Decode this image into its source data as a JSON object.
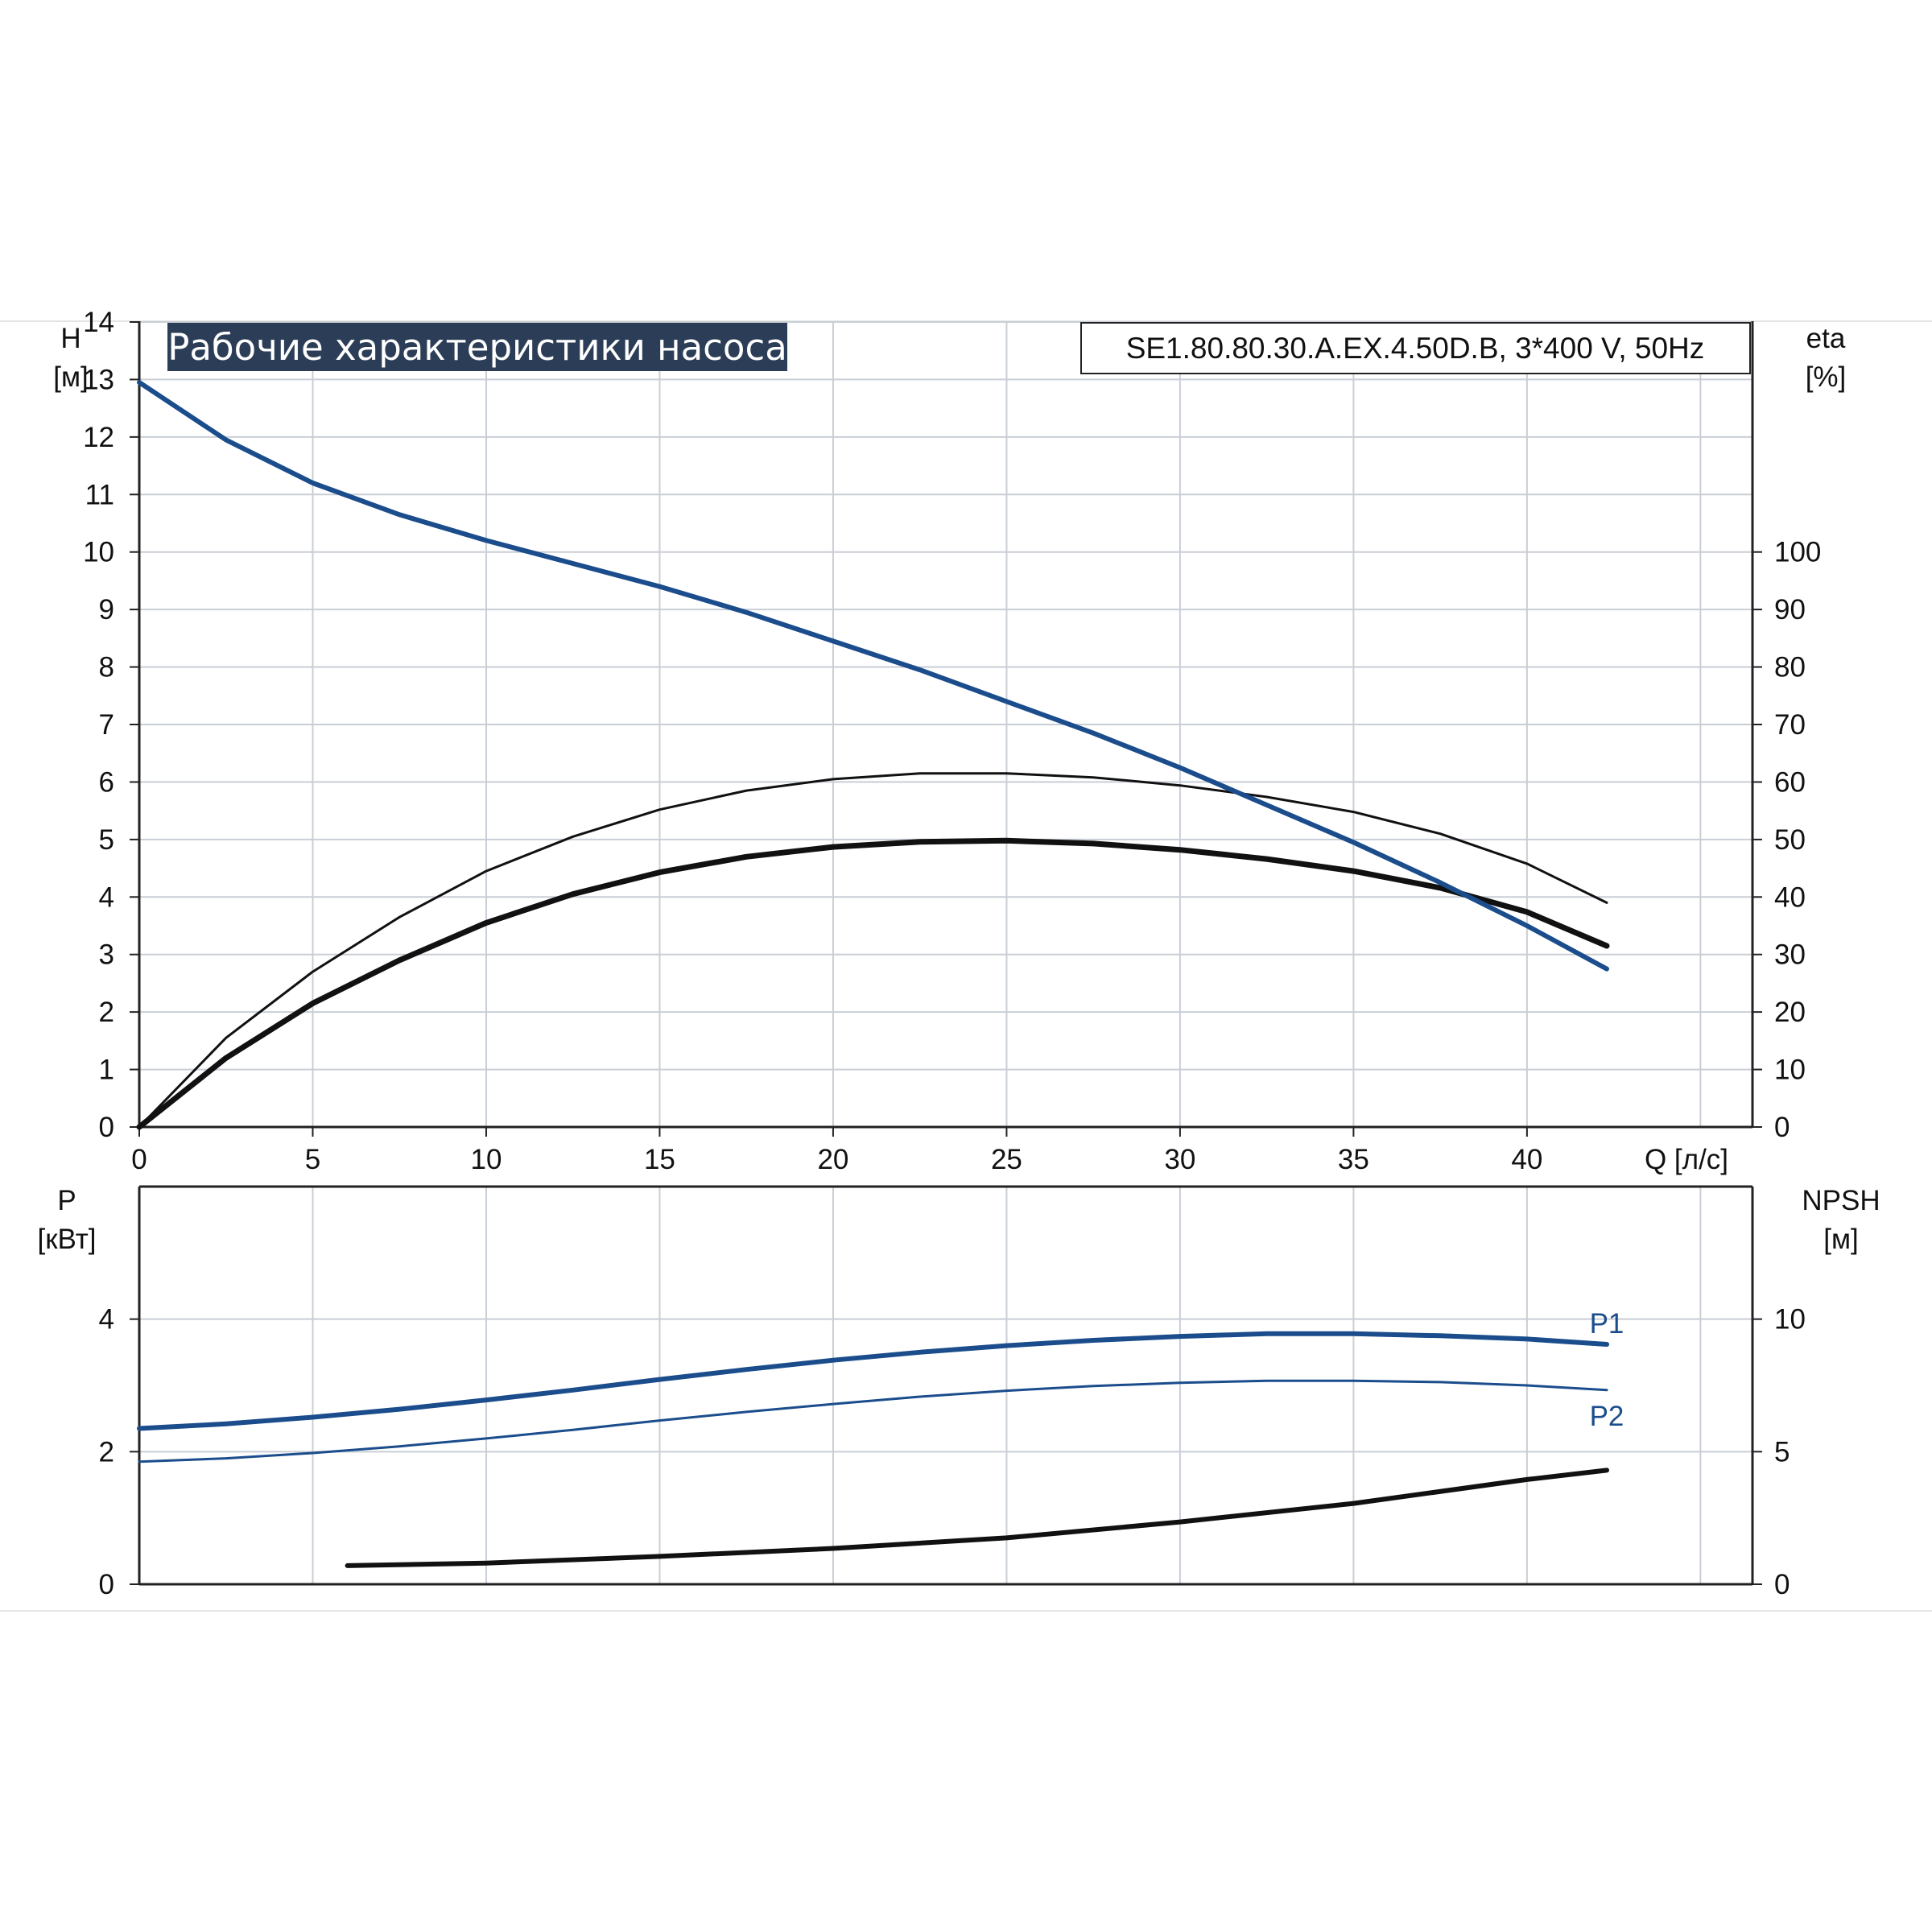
{
  "chart_data": [
    {
      "type": "line",
      "title": "Рабочие характеристики насоса",
      "subtitle": "SE1.80.80.30.A.EX.4.50D.B, 3*400 V, 50Hz",
      "xlabel": "Q [л/с]",
      "ylabel": [
        "H",
        "[м]"
      ],
      "y2label": [
        "eta",
        "[%]"
      ],
      "xlim": [
        0,
        46.5
      ],
      "xticks": [
        0,
        5,
        10,
        15,
        20,
        25,
        30,
        35,
        40
      ],
      "ylim": [
        0,
        14
      ],
      "yticks": [
        0,
        1,
        2,
        3,
        4,
        5,
        6,
        7,
        8,
        9,
        10,
        11,
        12,
        13,
        14
      ],
      "y2lim": [
        0,
        140
      ],
      "y2ticks": [
        0,
        10,
        20,
        30,
        40,
        50,
        60,
        70,
        80,
        90,
        100
      ],
      "grid": true,
      "series": [
        {
          "name": "",
          "axis": "left",
          "color": "#1b4d8c",
          "x": [
            0,
            2.5,
            5,
            7.5,
            10,
            12.5,
            15,
            17.5,
            20,
            22.5,
            25,
            27.5,
            30,
            32.5,
            35,
            37.5,
            40,
            42.3
          ],
          "y": [
            12.95,
            11.95,
            11.2,
            10.65,
            10.2,
            9.8,
            9.4,
            8.95,
            8.45,
            7.95,
            7.4,
            6.85,
            6.25,
            5.6,
            4.95,
            4.25,
            3.5,
            2.75
          ]
        },
        {
          "name": "",
          "axis": "right",
          "color": "#111111",
          "x": [
            0,
            2.5,
            5,
            7.5,
            10,
            12.5,
            15,
            17.5,
            20,
            22.5,
            25,
            27.5,
            30,
            32.5,
            35,
            37.5,
            40,
            42.3
          ],
          "y": [
            0,
            12,
            21.5,
            29,
            35.5,
            40.5,
            44.3,
            47,
            48.7,
            49.6,
            49.8,
            49.3,
            48.2,
            46.6,
            44.5,
            41.6,
            37.4,
            31.5
          ]
        },
        {
          "name": "",
          "axis": "right",
          "color": "#111111",
          "x": [
            0,
            2.5,
            5,
            7.5,
            10,
            12.5,
            15,
            17.5,
            20,
            22.5,
            25,
            27.5,
            30,
            32.5,
            35,
            37.5,
            40,
            42.3
          ],
          "y": [
            0,
            15.5,
            27,
            36.5,
            44.5,
            50.5,
            55.2,
            58.5,
            60.5,
            61.5,
            61.5,
            60.8,
            59.4,
            57.4,
            54.8,
            51,
            45.8,
            39
          ]
        }
      ]
    },
    {
      "type": "line",
      "ylabel": [
        "P",
        "[кВт]"
      ],
      "y2label": [
        "NPSH",
        "[м]"
      ],
      "xlim": [
        0,
        46.5
      ],
      "ylim": [
        0,
        6
      ],
      "yticks": [
        0,
        2,
        4
      ],
      "y2lim": [
        0,
        15
      ],
      "y2ticks": [
        0,
        5,
        10
      ],
      "grid": true,
      "series": [
        {
          "name": "P1",
          "axis": "left",
          "color": "#1b4d8c",
          "x": [
            0,
            2.5,
            5,
            7.5,
            10,
            12.5,
            15,
            17.5,
            20,
            22.5,
            25,
            27.5,
            30,
            32.5,
            35,
            37.5,
            40,
            42.3
          ],
          "y": [
            2.35,
            2.42,
            2.52,
            2.64,
            2.78,
            2.93,
            3.09,
            3.24,
            3.38,
            3.5,
            3.6,
            3.68,
            3.74,
            3.78,
            3.78,
            3.75,
            3.7,
            3.62
          ]
        },
        {
          "name": "P2",
          "axis": "left",
          "color": "#1b4d8c",
          "x": [
            0,
            2.5,
            5,
            7.5,
            10,
            12.5,
            15,
            17.5,
            20,
            22.5,
            25,
            27.5,
            30,
            32.5,
            35,
            37.5,
            40,
            42.3
          ],
          "y": [
            1.85,
            1.9,
            1.98,
            2.08,
            2.2,
            2.33,
            2.47,
            2.6,
            2.72,
            2.83,
            2.92,
            2.99,
            3.04,
            3.07,
            3.07,
            3.05,
            3,
            2.93
          ]
        },
        {
          "name": "",
          "axis": "right",
          "color": "#111111",
          "x": [
            6,
            10,
            15,
            20,
            25,
            30,
            35,
            40,
            42.3
          ],
          "y": [
            0.7,
            0.8,
            1.05,
            1.35,
            1.75,
            2.35,
            3.05,
            3.95,
            4.3
          ]
        }
      ]
    }
  ]
}
